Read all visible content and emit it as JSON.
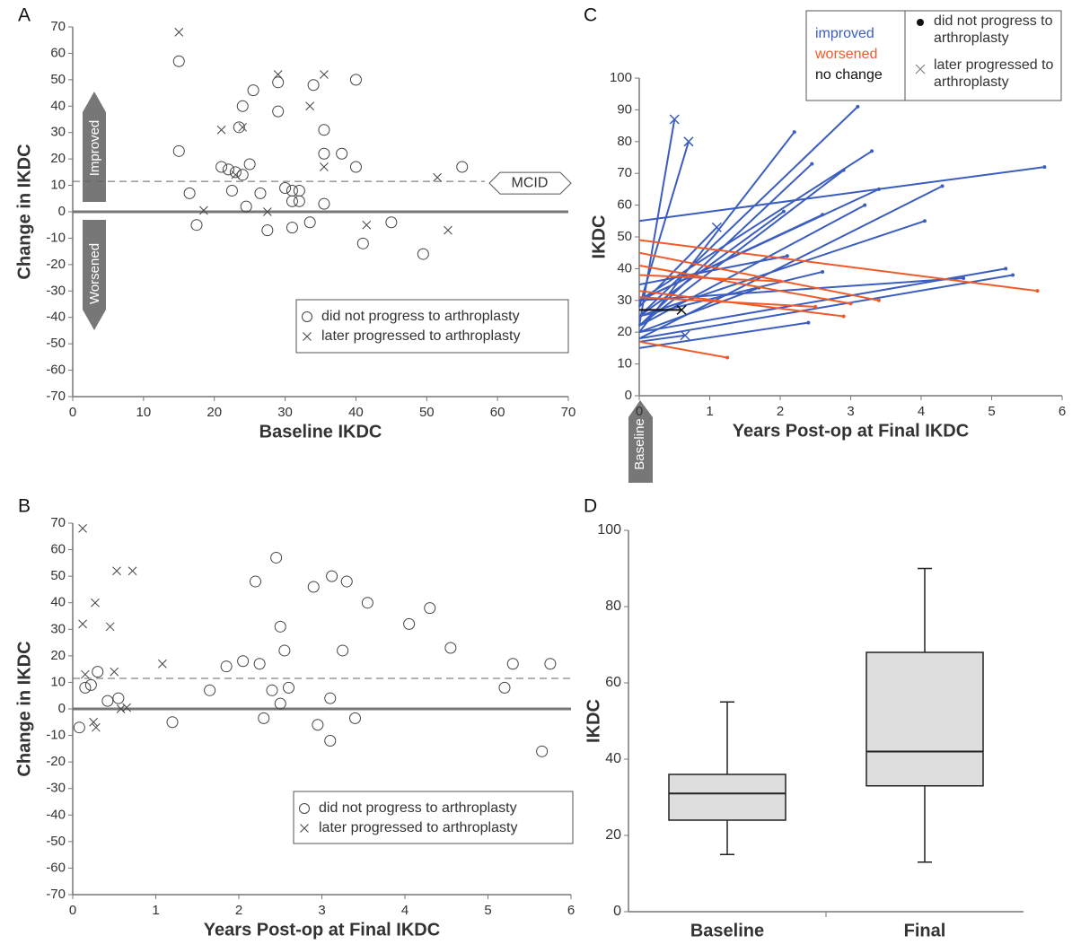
{
  "chart_data": [
    {
      "type": "scatter",
      "panel": "A",
      "x_label": "Baseline IKDC",
      "y_label": "Change in IKDC",
      "xlim": [
        0,
        70
      ],
      "xticks": [
        0,
        10,
        20,
        30,
        40,
        50,
        60,
        70
      ],
      "ylim": [
        -70,
        70
      ],
      "yticks": [
        -70,
        -60,
        -50,
        -40,
        -30,
        -20,
        -10,
        0,
        10,
        20,
        30,
        40,
        50,
        60,
        70
      ],
      "zero_line": true,
      "reference_line": {
        "value": 11.5,
        "label": "MCID"
      },
      "arrow_labels": [
        "Improved",
        "Worsened"
      ],
      "series": [
        {
          "name": "did not progress to arthroplasty",
          "marker": "circle",
          "color": "#444",
          "x": [
            15,
            15,
            16.5,
            17.5,
            21,
            22,
            22.5,
            23,
            23.5,
            24,
            24,
            24.5,
            25,
            25.5,
            26.5,
            27.5,
            29,
            29,
            30,
            31,
            31,
            31,
            32,
            32,
            33.5,
            34,
            35.5,
            35.5,
            35.5,
            38,
            40,
            40,
            41,
            45,
            49.5,
            55
          ],
          "values": [
            57,
            23,
            7,
            -5,
            17,
            16,
            8,
            15,
            32,
            14,
            40,
            2,
            18,
            46,
            7,
            -7,
            49,
            38,
            9,
            -6,
            4,
            8,
            4,
            8,
            -4,
            48,
            31,
            22,
            3,
            22,
            50,
            17,
            -12,
            -4,
            -16,
            17
          ]
        },
        {
          "name": "later progressed to arthroplasty",
          "marker": "x",
          "color": "#444",
          "x": [
            15,
            18.5,
            21,
            23,
            24,
            27.5,
            29,
            33.5,
            35.5,
            35.5,
            41.5,
            51.5,
            53
          ],
          "values": [
            68,
            0.5,
            31,
            14,
            32,
            0,
            52,
            40,
            52,
            17,
            -5,
            13,
            -7
          ]
        }
      ]
    },
    {
      "type": "scatter",
      "panel": "B",
      "x_label": "Years Post-op at Final IKDC",
      "y_label": "Change in IKDC",
      "xlim": [
        0,
        6
      ],
      "xticks": [
        0,
        1,
        2,
        3,
        4,
        5,
        6
      ],
      "ylim": [
        -70,
        70
      ],
      "yticks": [
        -70,
        -60,
        -50,
        -40,
        -30,
        -20,
        -10,
        0,
        10,
        20,
        30,
        40,
        50,
        60,
        70
      ],
      "zero_line": true,
      "reference_line": {
        "value": 11.5
      },
      "series": [
        {
          "name": "did not progress to arthroplasty",
          "marker": "circle",
          "color": "#444",
          "x": [
            0.08,
            0.15,
            0.22,
            0.3,
            0.42,
            0.55,
            1.2,
            1.65,
            1.85,
            2.05,
            2.2,
            2.25,
            2.3,
            2.4,
            2.45,
            2.5,
            2.5,
            2.55,
            2.6,
            2.9,
            2.95,
            3.1,
            3.1,
            3.12,
            3.25,
            3.3,
            3.4,
            3.55,
            4.05,
            4.3,
            4.55,
            5.2,
            5.3,
            5.65,
            5.75
          ],
          "values": [
            -7,
            8,
            9,
            14,
            3,
            4,
            -5,
            7,
            16,
            18,
            48,
            17,
            -3.5,
            7,
            57,
            2,
            31,
            22,
            8,
            46,
            -6,
            -12,
            4,
            50,
            22,
            48,
            -3.5,
            40,
            32,
            38,
            23,
            8,
            17,
            -16,
            17
          ]
        },
        {
          "name": "later progressed to arthroplasty",
          "marker": "x",
          "color": "#444",
          "x": [
            0.12,
            0.12,
            0.15,
            0.25,
            0.28,
            0.27,
            0.45,
            0.5,
            0.53,
            0.58,
            0.65,
            0.72,
            1.08
          ],
          "values": [
            68,
            32,
            13,
            -5,
            -7,
            40,
            31,
            14,
            52,
            0,
            0.5,
            52,
            17
          ]
        }
      ]
    },
    {
      "type": "segment",
      "panel": "C",
      "x_label": "Years Post-op at Final IKDC",
      "y_label": "IKDC",
      "baseline_label": "Baseline",
      "xlim": [
        0,
        6
      ],
      "xticks": [
        0,
        1,
        2,
        3,
        4,
        5,
        6
      ],
      "ylim": [
        0,
        100
      ],
      "yticks": [
        0,
        10,
        20,
        30,
        40,
        50,
        60,
        70,
        80,
        90,
        100
      ],
      "marker_legend": [
        "did not progress to arthroplasty",
        "later progressed to arthroplasty"
      ],
      "series": [
        {
          "name": "improved",
          "color": "#3a5dbf",
          "baseline": [
            22,
            28,
            28,
            55,
            25,
            20,
            22,
            30,
            22,
            18,
            30,
            25,
            30,
            25,
            22,
            35,
            20,
            18,
            25,
            30,
            15,
            20,
            17
          ],
          "years": [
            0.5,
            0.7,
            1.1,
            5.75,
            3.1,
            2.2,
            2.45,
            3.3,
            2.9,
            4.3,
            3.4,
            2.05,
            2.6,
            4.05,
            3.2,
            2.1,
            5.2,
            5.3,
            2.6,
            4.6,
            2.4,
            1.7,
            0.65
          ],
          "final": [
            87,
            80,
            53,
            72,
            91,
            83,
            73,
            77,
            71,
            66,
            65,
            58,
            57,
            55,
            60,
            44,
            40,
            38,
            39,
            37,
            23,
            34,
            19
          ],
          "progressed": [
            true,
            true,
            true,
            false,
            false,
            false,
            false,
            false,
            false,
            false,
            false,
            false,
            false,
            false,
            false,
            false,
            false,
            false,
            false,
            false,
            false,
            false,
            true
          ]
        },
        {
          "name": "worsened",
          "color": "#f05a28",
          "baseline": [
            49,
            45,
            41,
            33,
            38,
            17,
            31
          ],
          "years": [
            5.65,
            3.4,
            3.0,
            2.9,
            2.0,
            1.25,
            2.5
          ],
          "final": [
            33,
            30,
            29,
            25,
            36,
            12,
            28
          ],
          "progressed": [
            false,
            false,
            false,
            false,
            false,
            false,
            false
          ]
        },
        {
          "name": "no change",
          "color": "#111",
          "baseline": [
            27
          ],
          "years": [
            0.6
          ],
          "final": [
            27
          ],
          "progressed": [
            true
          ]
        }
      ]
    },
    {
      "type": "box",
      "panel": "D",
      "y_label": "IKDC",
      "categories": [
        "Baseline",
        "Final"
      ],
      "min": [
        15,
        13
      ],
      "q1": [
        24,
        33
      ],
      "median": [
        31,
        42
      ],
      "q3": [
        36,
        68
      ],
      "max": [
        55,
        90
      ],
      "color": "#dedede",
      "ylim": [
        0,
        100
      ],
      "yticks": [
        0,
        20,
        40,
        60,
        80,
        100
      ]
    }
  ]
}
